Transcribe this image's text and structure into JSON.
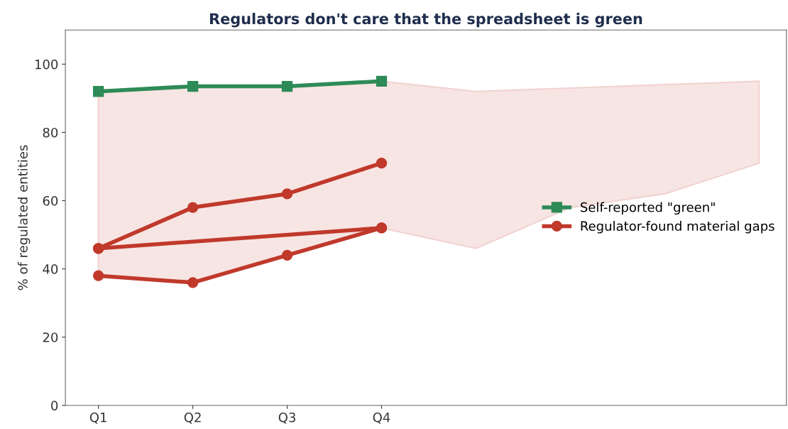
{
  "chart_data": {
    "type": "line",
    "title": "Regulators don't care that the spreadsheet is green",
    "ylabel": "% of regulated entities",
    "categories": [
      "Q1",
      "Q2",
      "Q3",
      "Q4",
      null,
      null,
      null,
      null
    ],
    "ylim": [
      0,
      110
    ],
    "yticks": [
      0,
      20,
      40,
      60,
      80,
      100
    ],
    "grid": false,
    "legend": "right",
    "line_style": "solid",
    "series": [
      {
        "name": "Self-reported \"green\"",
        "color": "#2e8b57",
        "marker": "square",
        "values": [
          92,
          93.5,
          93.5,
          95,
          null,
          null,
          null,
          null
        ]
      },
      {
        "name": "Regulator-found material gaps",
        "color": "#c0392b",
        "marker": "circle",
        "values": [
          46,
          58,
          62,
          71,
          null,
          null,
          null,
          null
        ],
        "lower": [
          38,
          36,
          44,
          52,
          46,
          58,
          62,
          71
        ],
        "upper": [
          92,
          93.5,
          93.5,
          95,
          92,
          93,
          94,
          95
        ]
      },
      {
        "color": "#c0392b",
        "marker": "circle",
        "values": [
          38,
          36,
          44,
          52,
          null,
          null,
          null,
          null
        ]
      },
      {
        "color": "#c0392b",
        "marker": "circle",
        "x": [
          "Q1",
          "Q4"
        ],
        "values": [
          46,
          52
        ]
      }
    ]
  }
}
